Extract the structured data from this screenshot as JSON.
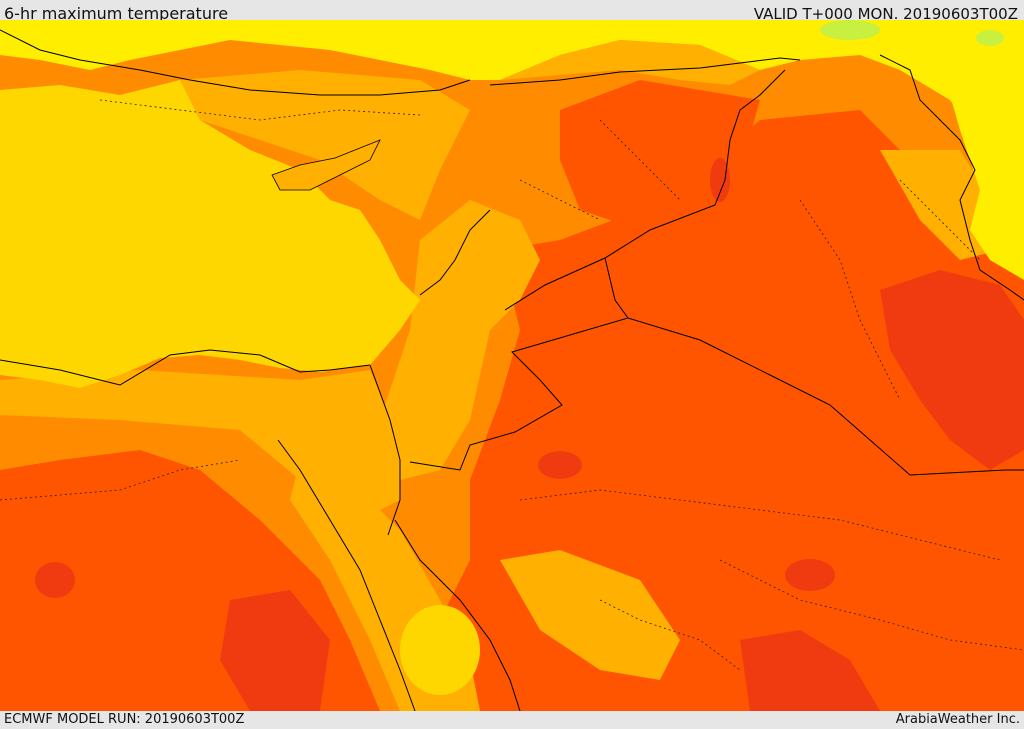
{
  "header": {
    "title": "6-hr maximum temperature",
    "valid": "VALID T+000 MON. 20190603T00Z"
  },
  "footer": {
    "model_run": "ECMWF MODEL RUN: 20190603T00Z",
    "credit": "ArabiaWeather Inc."
  },
  "map": {
    "colors": {
      "sea_yellow": "#ffd700",
      "light_yellow": "#ffee00",
      "light_green": "#c8f040",
      "amber": "#ffb000",
      "orange": "#ff8c00",
      "red_orange": "#ff5500",
      "red": "#f03a10",
      "border": "#000000"
    }
  }
}
